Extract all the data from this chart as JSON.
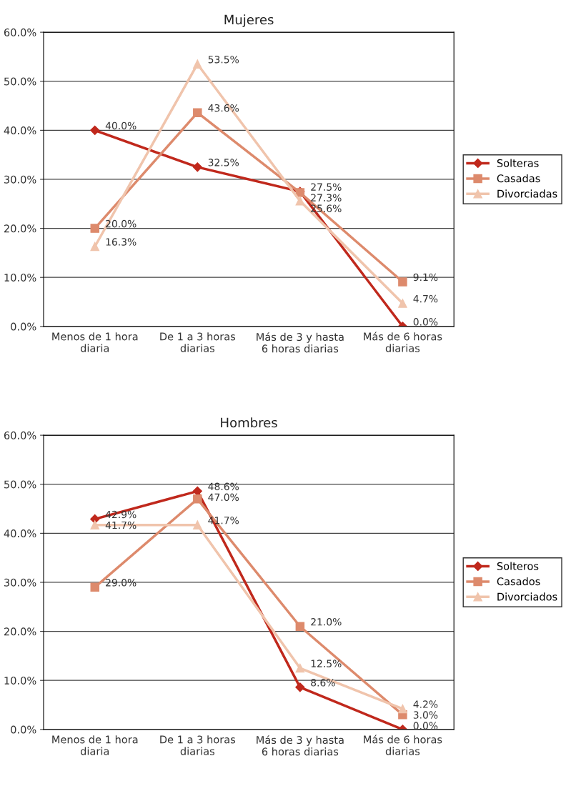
{
  "chart_data": [
    {
      "type": "line",
      "title": "Mujeres",
      "categories": [
        "Menos de 1 hora diaria",
        "De 1 a 3 horas diarias",
        "Más de 3 y hasta 6 horas diarias",
        "Más de 6 horas diarias"
      ],
      "ylim": [
        0,
        60
      ],
      "yticks": [
        {
          "value": 0,
          "label": "0.0%"
        },
        {
          "value": 10,
          "label": "10.0%"
        },
        {
          "value": 20,
          "label": "20.0%"
        },
        {
          "value": 30,
          "label": "30.0%"
        },
        {
          "value": 40,
          "label": "40.0%"
        },
        {
          "value": 50,
          "label": "50.0%"
        },
        {
          "value": 60,
          "label": "60.0%"
        }
      ],
      "grid": "y",
      "legend": "right",
      "series": [
        {
          "name": "Solteras",
          "color": "#c0281c",
          "marker": "diamond",
          "values": [
            40.0,
            32.5,
            27.5,
            0.0
          ],
          "value_labels": [
            "40.0%",
            "32.5%",
            "27.5%",
            "0.0%"
          ]
        },
        {
          "name": "Casadas",
          "color": "#dd8a6c",
          "marker": "square",
          "values": [
            20.0,
            43.6,
            27.3,
            9.1
          ],
          "value_labels": [
            "20.0%",
            "43.6%",
            "27.3%",
            "9.1%"
          ]
        },
        {
          "name": "Divorciadas",
          "color": "#f0c4ac",
          "marker": "triangle",
          "values": [
            16.3,
            53.5,
            25.6,
            4.7
          ],
          "value_labels": [
            "16.3%",
            "53.5%",
            "25.6%",
            "4.7%"
          ]
        }
      ]
    },
    {
      "type": "line",
      "title": "Hombres",
      "categories": [
        "Menos de 1 hora diaria",
        "De 1 a 3 horas diarias",
        "Más de 3 y hasta 6 horas diarias",
        "Más de 6 horas diarias"
      ],
      "ylim": [
        0,
        60
      ],
      "yticks": [
        {
          "value": 0,
          "label": "0.0%"
        },
        {
          "value": 10,
          "label": "10.0%"
        },
        {
          "value": 20,
          "label": "20.0%"
        },
        {
          "value": 30,
          "label": "30.0%"
        },
        {
          "value": 40,
          "label": "40.0%"
        },
        {
          "value": 50,
          "label": "50.0%"
        },
        {
          "value": 60,
          "label": "60.0%"
        }
      ],
      "grid": "y",
      "legend": "right",
      "series": [
        {
          "name": "Solteros",
          "color": "#c0281c",
          "marker": "diamond",
          "values": [
            42.9,
            48.6,
            8.6,
            0.0
          ],
          "value_labels": [
            "42.9%",
            "48.6%",
            "8.6%",
            "0.0%"
          ]
        },
        {
          "name": "Casados",
          "color": "#dd8a6c",
          "marker": "square",
          "values": [
            29.0,
            47.0,
            21.0,
            3.0
          ],
          "value_labels": [
            "29.0%",
            "47.0%",
            "21.0%",
            "3.0%"
          ]
        },
        {
          "name": "Divorciados",
          "color": "#f0c4ac",
          "marker": "triangle",
          "values": [
            41.7,
            41.7,
            12.5,
            4.2
          ],
          "value_labels": [
            "41.7%",
            "41.7%",
            "12.5%",
            "4.2%"
          ]
        }
      ]
    }
  ]
}
